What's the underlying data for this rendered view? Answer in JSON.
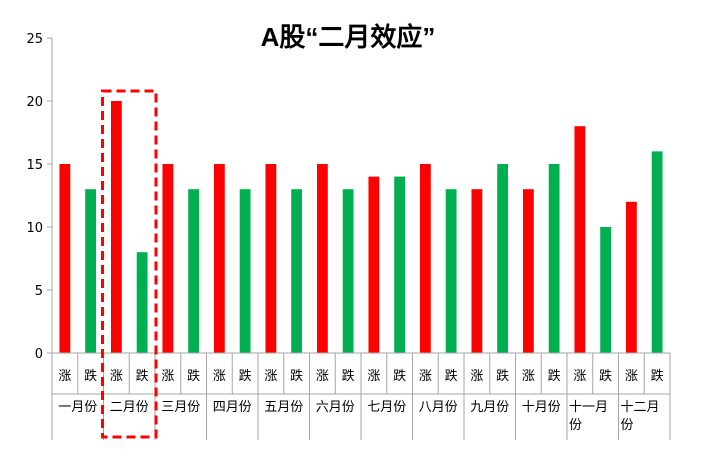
{
  "chart_data": {
    "type": "bar",
    "title": "A股“二月效应”",
    "ylim": [
      0,
      25
    ],
    "yticks": [
      "0",
      "5",
      "10",
      "15",
      "20",
      "25"
    ],
    "categories": [
      {
        "month": "一月份",
        "sub": [
          "涨",
          "跌"
        ],
        "values": [
          15,
          13
        ]
      },
      {
        "month": "二月份",
        "sub": [
          "涨",
          "跌"
        ],
        "values": [
          20,
          8
        ]
      },
      {
        "month": "三月份",
        "sub": [
          "涨",
          "跌"
        ],
        "values": [
          15,
          13
        ]
      },
      {
        "month": "四月份",
        "sub": [
          "涨",
          "跌"
        ],
        "values": [
          15,
          13
        ]
      },
      {
        "month": "五月份",
        "sub": [
          "涨",
          "跌"
        ],
        "values": [
          15,
          13
        ]
      },
      {
        "month": "六月份",
        "sub": [
          "涨",
          "跌"
        ],
        "values": [
          15,
          13
        ]
      },
      {
        "month": "七月份",
        "sub": [
          "涨",
          "跌"
        ],
        "values": [
          14,
          14
        ]
      },
      {
        "month": "八月份",
        "sub": [
          "涨",
          "跌"
        ],
        "values": [
          15,
          13
        ]
      },
      {
        "month": "九月份",
        "sub": [
          "涨",
          "跌"
        ],
        "values": [
          13,
          15
        ]
      },
      {
        "month": "十月份",
        "sub": [
          "涨",
          "跌"
        ],
        "values": [
          13,
          15
        ]
      },
      {
        "month": "十一月份",
        "sub": [
          "涨",
          "跌"
        ],
        "values": [
          18,
          10
        ]
      },
      {
        "month": "十二月份",
        "sub": [
          "涨",
          "跌"
        ],
        "values": [
          12,
          16
        ]
      }
    ],
    "colors": {
      "rise": "#ff0000",
      "fall": "#00b050",
      "axis": "#a6a6a6",
      "highlight": "#ff0000"
    },
    "highlight_category": "二月份",
    "grid": false
  }
}
